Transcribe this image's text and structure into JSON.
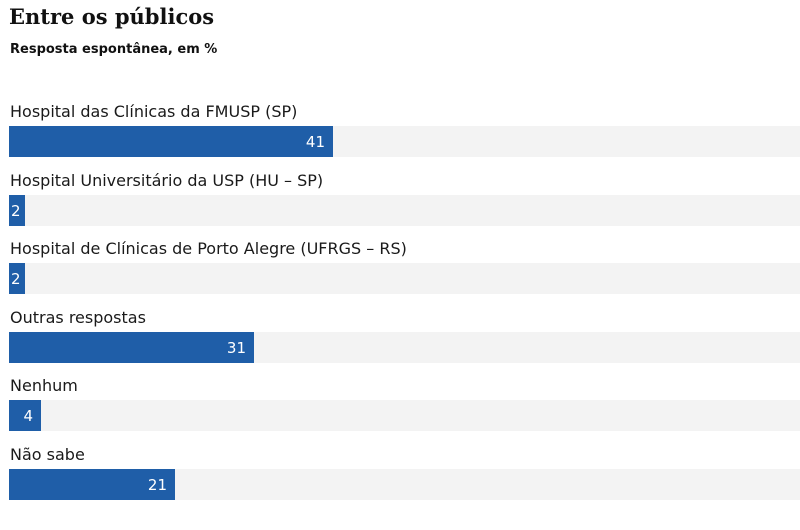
{
  "colors": {
    "bar": "#1f5ea8",
    "track": "#f3f3f3",
    "value_text": "#ffffff"
  },
  "chart_data": {
    "type": "bar",
    "orientation": "horizontal",
    "title": "Entre os públicos",
    "subtitle": "Resposta espontânea, em %",
    "categories": [
      "Hospital das Clínicas da FMUSP (SP)",
      "Hospital Universitário da USP (HU – SP)",
      "Hospital de Clínicas de Porto Alegre (UFRGS – RS)",
      "Outras respostas",
      "Nenhum",
      "Não sabe"
    ],
    "values": [
      41,
      2,
      2,
      31,
      4,
      21
    ],
    "value_labels": [
      "41",
      "2",
      "2",
      "31",
      "4",
      "21"
    ],
    "xlim": [
      0,
      100
    ],
    "grid": false,
    "legend": false
  }
}
